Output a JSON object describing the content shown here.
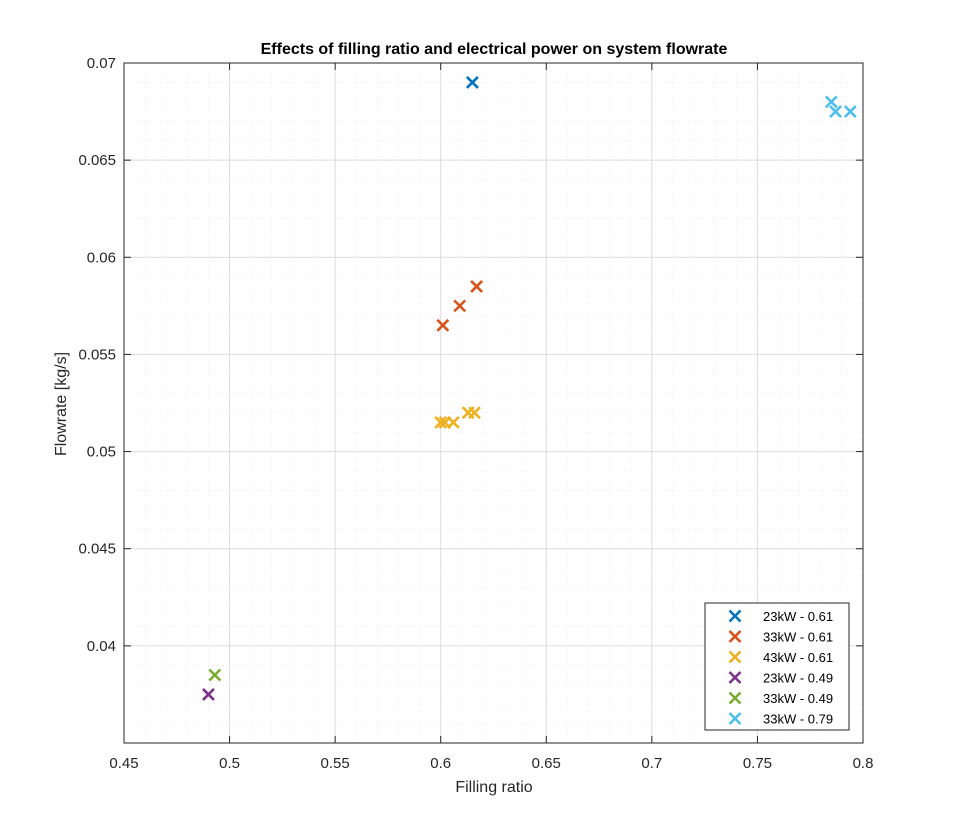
{
  "chart_data": {
    "type": "scatter",
    "title": "Effects of filling ratio and electrical power on system flowrate",
    "xlabel": "Filling ratio",
    "ylabel": "Flowrate [kg/s]",
    "xlim": [
      0.45,
      0.8
    ],
    "ylim": [
      0.035,
      0.07
    ],
    "xticks": [
      0.45,
      0.5,
      0.55,
      0.6,
      0.65,
      0.7,
      0.75,
      0.8
    ],
    "xtick_labels": [
      "0.45",
      "0.5",
      "0.55",
      "0.6",
      "0.65",
      "0.7",
      "0.75",
      "0.8"
    ],
    "yticks": [
      0.04,
      0.045,
      0.05,
      0.055,
      0.06,
      0.065,
      0.07
    ],
    "ytick_labels": [
      "0.04",
      "0.045",
      "0.05",
      "0.055",
      "0.06",
      "0.065",
      "0.07"
    ],
    "grid": true,
    "minor_grid": true,
    "legend_position": "bottom-right",
    "marker": "x",
    "series": [
      {
        "name": "23kW - 0.61",
        "color": "#0072BD",
        "x": [
          0.615
        ],
        "y": [
          0.069
        ]
      },
      {
        "name": "33kW - 0.61",
        "color": "#D95319",
        "x": [
          0.601,
          0.609,
          0.617
        ],
        "y": [
          0.0565,
          0.0575,
          0.0585
        ]
      },
      {
        "name": "43kW - 0.61",
        "color": "#EDB120",
        "x": [
          0.6,
          0.602,
          0.606,
          0.613,
          0.616
        ],
        "y": [
          0.0515,
          0.0515,
          0.0515,
          0.052,
          0.052
        ]
      },
      {
        "name": "23kW - 0.49",
        "color": "#7E2F8E",
        "x": [
          0.49
        ],
        "y": [
          0.0375
        ]
      },
      {
        "name": "33kW - 0.49",
        "color": "#77AC30",
        "x": [
          0.493
        ],
        "y": [
          0.0385
        ]
      },
      {
        "name": "33kW - 0.79",
        "color": "#4DBEEE",
        "x": [
          0.785,
          0.787,
          0.794
        ],
        "y": [
          0.068,
          0.0675,
          0.0675
        ]
      }
    ]
  }
}
